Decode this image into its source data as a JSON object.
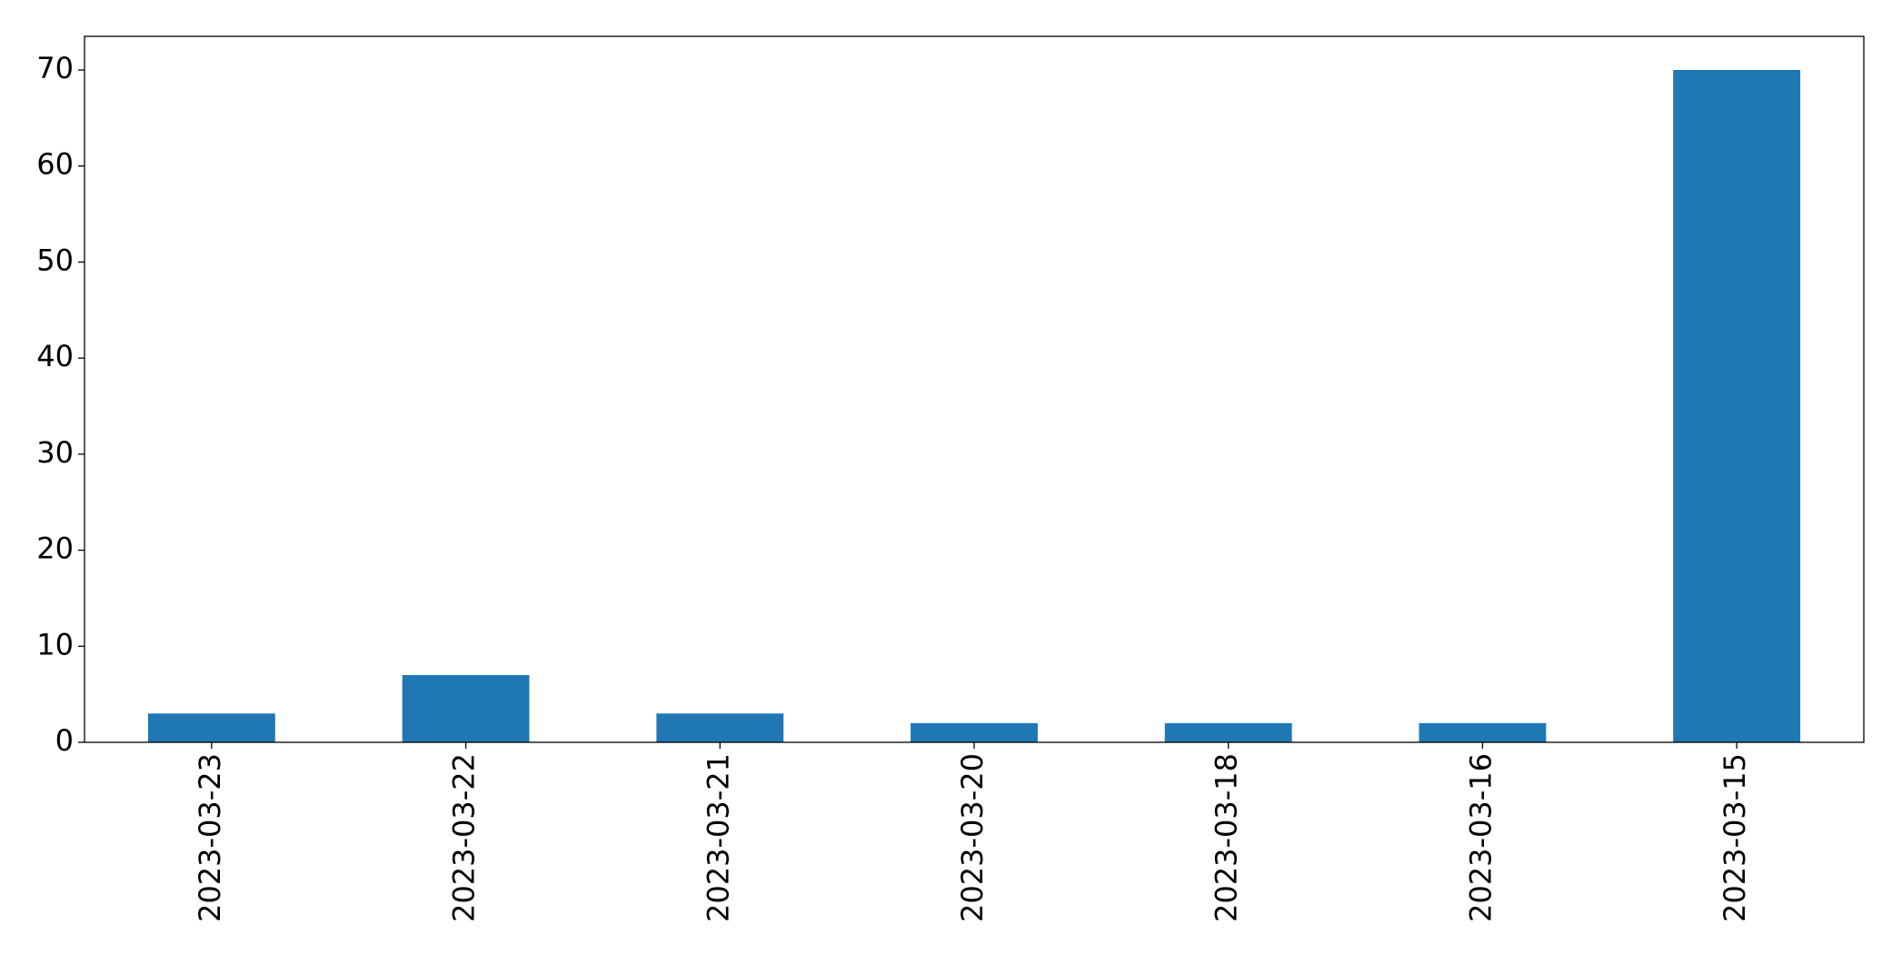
{
  "chart_data": {
    "type": "bar",
    "categories": [
      "2023-03-23",
      "2023-03-22",
      "2023-03-21",
      "2023-03-20",
      "2023-03-18",
      "2023-03-16",
      "2023-03-15"
    ],
    "values": [
      3,
      7,
      3,
      2,
      2,
      2,
      70
    ],
    "color": "#1f77b4",
    "ylim": [
      0,
      73.5
    ],
    "yticks": [
      0,
      10,
      20,
      30,
      40,
      50,
      60,
      70
    ],
    "grid": false
  }
}
